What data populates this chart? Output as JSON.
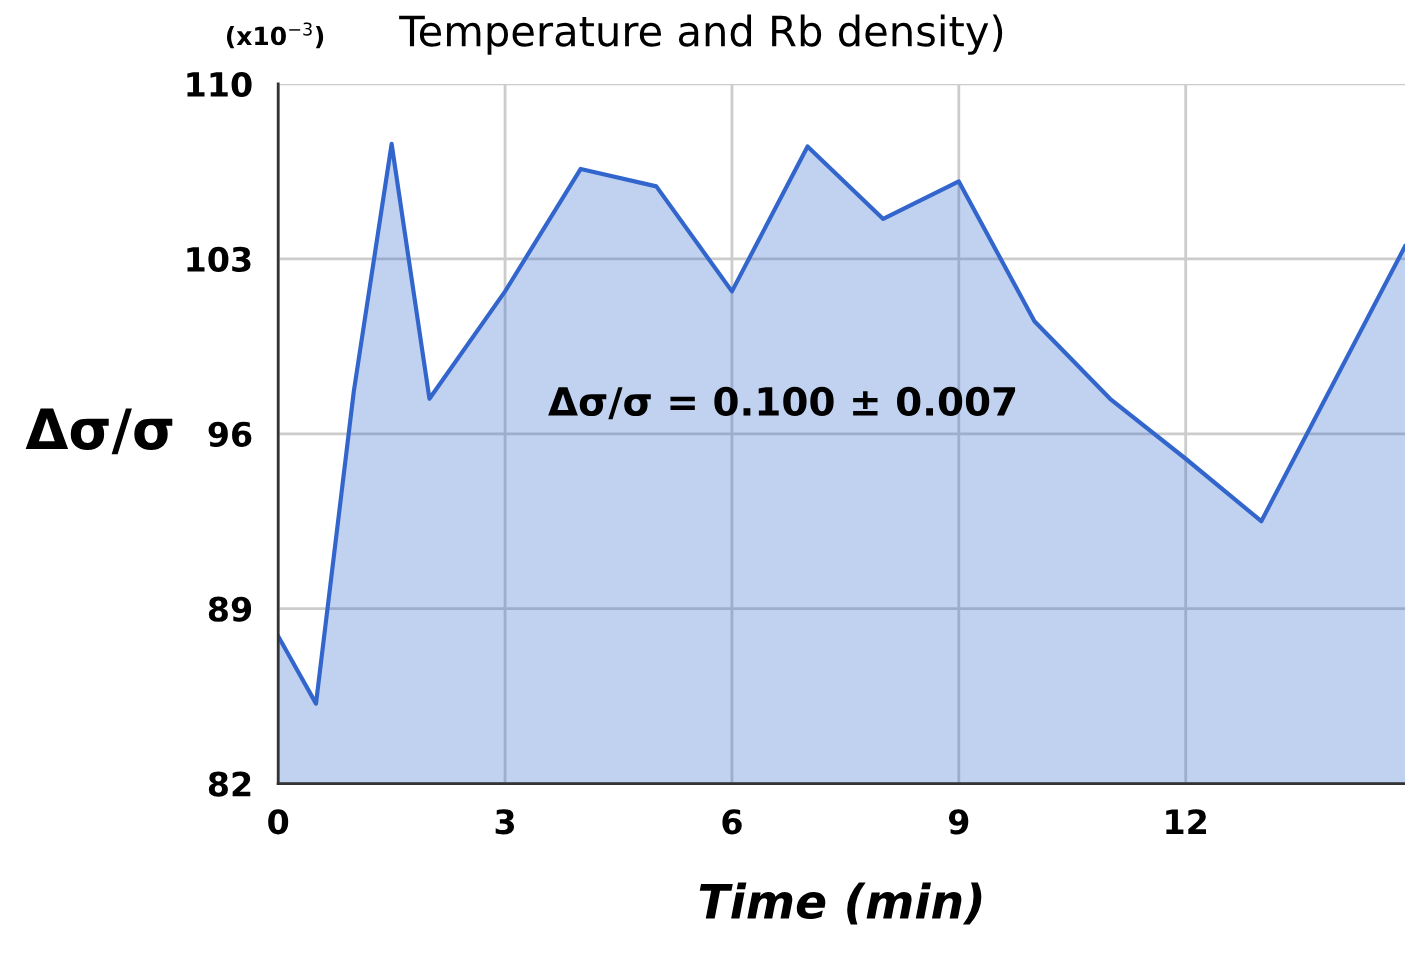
{
  "chart_data": {
    "type": "area",
    "title": "Temperature and Rb density)",
    "xlabel": "Time (min)",
    "ylabel": "Δσ/σ",
    "x": [
      0,
      0.5,
      1,
      1.5,
      2,
      3,
      4,
      5,
      6,
      7,
      8,
      9,
      10,
      11,
      12,
      13,
      14.9
    ],
    "series": [
      {
        "color": "#3366cc",
        "values": [
          87.9,
          85.2,
          97.7,
          107.6,
          97.4,
          101.7,
          106.6,
          105.9,
          101.7,
          107.5,
          104.6,
          106.1,
          100.5,
          97.4,
          95.0,
          92.5,
          103.5
        ]
      }
    ],
    "xlim": [
      0,
      14.9
    ],
    "ylim": [
      82,
      110
    ],
    "xticks": [
      0,
      3,
      6,
      9,
      12
    ],
    "yticks": [
      82,
      89,
      96,
      103,
      110
    ],
    "grid": true,
    "annotations": [
      "(x10$^{−3}$)",
      "Δσ/σ = 0.100 ± 0.007"
    ]
  }
}
